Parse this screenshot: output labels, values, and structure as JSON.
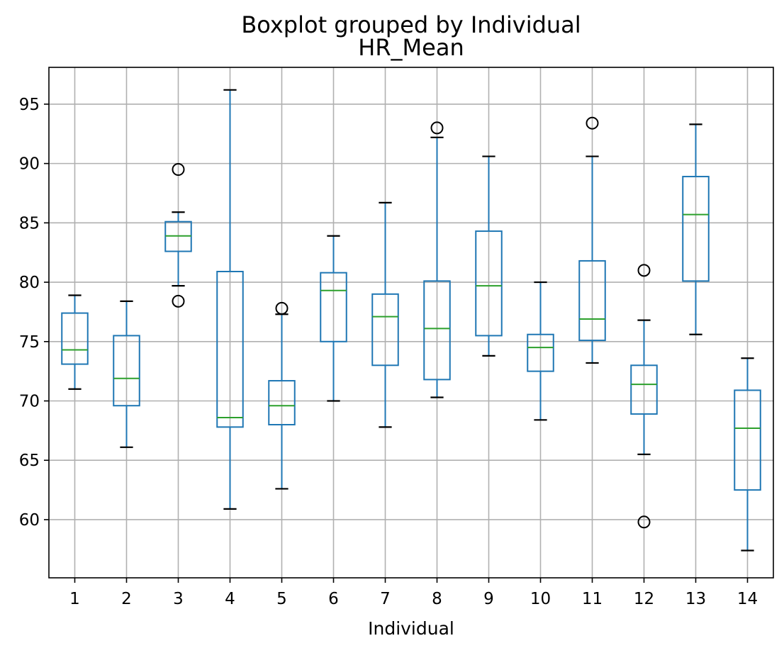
{
  "chart_data": {
    "type": "boxplot",
    "suptitle": "Boxplot grouped by Individual",
    "title": "HR_Mean",
    "xlabel": "Individual",
    "ylabel": "",
    "ylim": [
      55.1,
      98.1
    ],
    "yticks": [
      60,
      65,
      70,
      75,
      80,
      85,
      90,
      95
    ],
    "grid": true,
    "categories": [
      "1",
      "2",
      "3",
      "4",
      "5",
      "6",
      "7",
      "8",
      "9",
      "10",
      "11",
      "12",
      "13",
      "14"
    ],
    "boxes": [
      {
        "whislo": 71.0,
        "q1": 73.1,
        "med": 74.3,
        "q3": 77.4,
        "whishi": 78.9,
        "fliers": []
      },
      {
        "whislo": 66.1,
        "q1": 69.6,
        "med": 71.9,
        "q3": 75.5,
        "whishi": 78.4,
        "fliers": []
      },
      {
        "whislo": 79.7,
        "q1": 82.6,
        "med": 83.9,
        "q3": 85.1,
        "whishi": 85.9,
        "fliers": [
          89.5,
          78.4
        ]
      },
      {
        "whislo": 60.9,
        "q1": 67.8,
        "med": 68.6,
        "q3": 80.9,
        "whishi": 96.2,
        "fliers": []
      },
      {
        "whislo": 62.6,
        "q1": 68.0,
        "med": 69.6,
        "q3": 71.7,
        "whishi": 77.3,
        "fliers": [
          77.8
        ]
      },
      {
        "whislo": 70.0,
        "q1": 75.0,
        "med": 79.3,
        "q3": 80.8,
        "whishi": 83.9,
        "fliers": []
      },
      {
        "whislo": 67.8,
        "q1": 73.0,
        "med": 77.1,
        "q3": 79.0,
        "whishi": 86.7,
        "fliers": []
      },
      {
        "whislo": 70.3,
        "q1": 71.8,
        "med": 76.1,
        "q3": 80.1,
        "whishi": 92.2,
        "fliers": [
          93.0
        ]
      },
      {
        "whislo": 73.8,
        "q1": 75.5,
        "med": 79.7,
        "q3": 84.3,
        "whishi": 90.6,
        "fliers": []
      },
      {
        "whislo": 68.4,
        "q1": 72.5,
        "med": 74.5,
        "q3": 75.6,
        "whishi": 80.0,
        "fliers": []
      },
      {
        "whislo": 73.2,
        "q1": 75.1,
        "med": 76.9,
        "q3": 81.8,
        "whishi": 90.6,
        "fliers": [
          93.4
        ]
      },
      {
        "whislo": 65.5,
        "q1": 68.9,
        "med": 71.4,
        "q3": 73.0,
        "whishi": 76.8,
        "fliers": [
          81.0,
          59.8
        ]
      },
      {
        "whislo": 75.6,
        "q1": 80.1,
        "med": 85.7,
        "q3": 88.9,
        "whishi": 93.3,
        "fliers": []
      },
      {
        "whislo": 57.4,
        "q1": 62.5,
        "med": 67.7,
        "q3": 70.9,
        "whishi": 73.6,
        "fliers": []
      }
    ],
    "colors": {
      "box": "#1f77b4",
      "median": "#2ca02c",
      "cap": "#000000",
      "flier": "#000000",
      "grid": "#b0b0b0"
    }
  }
}
